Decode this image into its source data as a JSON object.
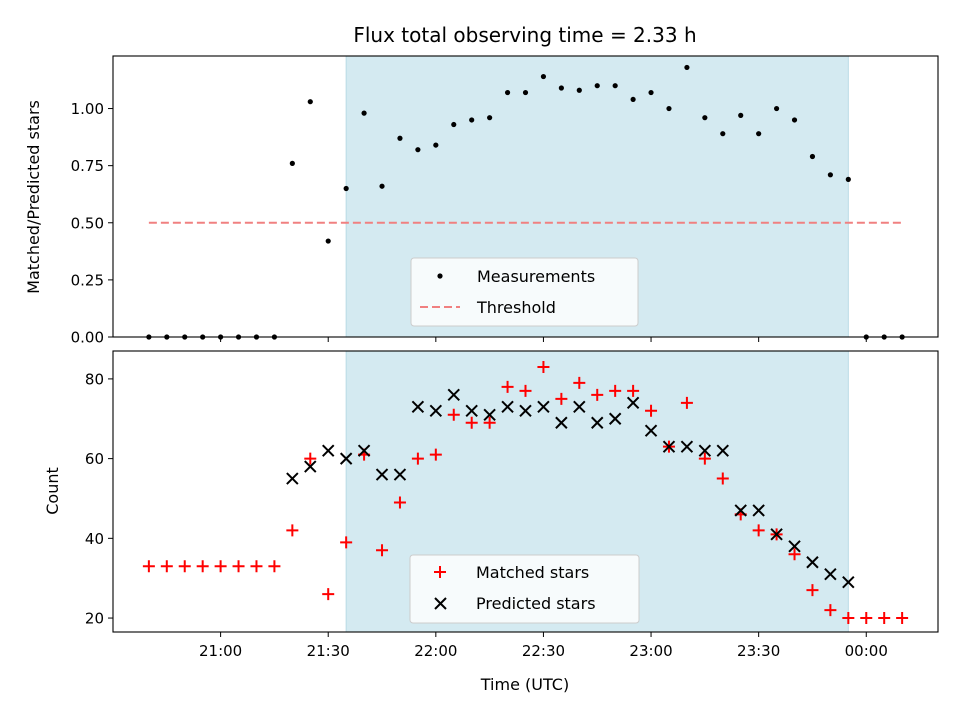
{
  "chart_data": [
    {
      "type": "scatter",
      "title": "Flux total observing time = 2.33 h",
      "xlabel": "",
      "ylabel": "Matched/Predicted stars",
      "ylim": [
        0,
        1.23
      ],
      "yticks": [
        0,
        0.25,
        0.5,
        0.75,
        1.0
      ],
      "ytick_labels": [
        "0.00",
        "0.25",
        "0.50",
        "0.75",
        "1.00"
      ],
      "xlim": [
        "20:30",
        "00:20"
      ],
      "xticks": [
        "21:00",
        "21:30",
        "22:00",
        "22:30",
        "23:00",
        "23:30",
        "00:00"
      ],
      "xtick_labels_shown": false,
      "shaded_interval": [
        "21:35",
        "23:55"
      ],
      "shade_color": "#d4eaf1",
      "grid": false,
      "legend_position": "lower center",
      "series": [
        {
          "name": "Measurements",
          "marker": "dot",
          "color": "#000000",
          "x": [
            "20:40",
            "20:45",
            "20:50",
            "20:55",
            "21:00",
            "21:05",
            "21:10",
            "21:15",
            "21:20",
            "21:25",
            "21:30",
            "21:35",
            "21:40",
            "21:45",
            "21:50",
            "21:55",
            "22:00",
            "22:05",
            "22:10",
            "22:15",
            "22:20",
            "22:25",
            "22:30",
            "22:35",
            "22:40",
            "22:45",
            "22:50",
            "22:55",
            "23:00",
            "23:05",
            "23:10",
            "23:15",
            "23:20",
            "23:25",
            "23:30",
            "23:35",
            "23:40",
            "23:45",
            "23:50",
            "23:55",
            "00:00",
            "00:05",
            "00:10"
          ],
          "y": [
            0,
            0,
            0,
            0,
            0,
            0,
            0,
            0,
            0.76,
            1.03,
            0.42,
            0.65,
            0.98,
            0.66,
            0.87,
            0.82,
            0.84,
            0.93,
            0.95,
            0.96,
            1.07,
            1.07,
            1.14,
            1.09,
            1.08,
            1.1,
            1.1,
            1.04,
            1.07,
            1.0,
            1.18,
            0.96,
            0.89,
            0.97,
            0.89,
            1.0,
            0.95,
            0.79,
            0.71,
            0.69,
            0,
            0,
            0
          ]
        },
        {
          "name": "Threshold",
          "line": "dashed",
          "color": "#f08080",
          "x": [
            "20:40",
            "00:10"
          ],
          "y": [
            0.5,
            0.5
          ]
        }
      ]
    },
    {
      "type": "scatter",
      "title": "",
      "xlabel": "Time (UTC)",
      "ylabel": "Count",
      "ylim": [
        16.5,
        87
      ],
      "yticks": [
        20,
        40,
        60,
        80
      ],
      "ytick_labels": [
        "20",
        "40",
        "60",
        "80"
      ],
      "xlim": [
        "20:30",
        "00:20"
      ],
      "xticks": [
        "21:00",
        "21:30",
        "22:00",
        "22:30",
        "23:00",
        "23:30",
        "00:00"
      ],
      "xtick_labels": [
        "21:00",
        "21:30",
        "22:00",
        "22:30",
        "23:00",
        "23:30",
        "00:00"
      ],
      "shaded_interval": [
        "21:35",
        "23:55"
      ],
      "shade_color": "#d4eaf1",
      "grid": false,
      "legend_position": "lower center",
      "series": [
        {
          "name": "Matched stars",
          "marker": "plus",
          "color": "#ff0000",
          "x": [
            "20:40",
            "20:45",
            "20:50",
            "20:55",
            "21:00",
            "21:05",
            "21:10",
            "21:15",
            "21:20",
            "21:25",
            "21:30",
            "21:35",
            "21:40",
            "21:45",
            "21:50",
            "21:55",
            "22:00",
            "22:05",
            "22:10",
            "22:15",
            "22:20",
            "22:25",
            "22:30",
            "22:35",
            "22:40",
            "22:45",
            "22:50",
            "22:55",
            "23:00",
            "23:05",
            "23:10",
            "23:15",
            "23:20",
            "23:25",
            "23:30",
            "23:35",
            "23:40",
            "23:45",
            "23:50",
            "23:55",
            "00:00",
            "00:05",
            "00:10"
          ],
          "y": [
            33,
            33,
            33,
            33,
            33,
            33,
            33,
            33,
            42,
            60,
            26,
            39,
            61,
            37,
            49,
            60,
            61,
            71,
            69,
            69,
            78,
            77,
            83,
            75,
            79,
            76,
            77,
            77,
            72,
            63,
            74,
            60,
            55,
            46,
            42,
            41,
            36,
            27,
            22,
            20,
            20,
            20,
            20
          ]
        },
        {
          "name": "Predicted stars",
          "marker": "x",
          "color": "#000000",
          "x": [
            "21:20",
            "21:25",
            "21:30",
            "21:35",
            "21:40",
            "21:45",
            "21:50",
            "21:55",
            "22:00",
            "22:05",
            "22:10",
            "22:15",
            "22:20",
            "22:25",
            "22:30",
            "22:35",
            "22:40",
            "22:45",
            "22:50",
            "22:55",
            "23:00",
            "23:05",
            "23:10",
            "23:15",
            "23:20",
            "23:25",
            "23:30",
            "23:35",
            "23:40",
            "23:45",
            "23:50",
            "23:55"
          ],
          "y": [
            55,
            58,
            62,
            60,
            62,
            56,
            56,
            73,
            72,
            76,
            72,
            71,
            73,
            72,
            73,
            69,
            73,
            69,
            70,
            74,
            67,
            63,
            63,
            62,
            62,
            47,
            47,
            41,
            38,
            34,
            31,
            29
          ]
        }
      ]
    }
  ]
}
